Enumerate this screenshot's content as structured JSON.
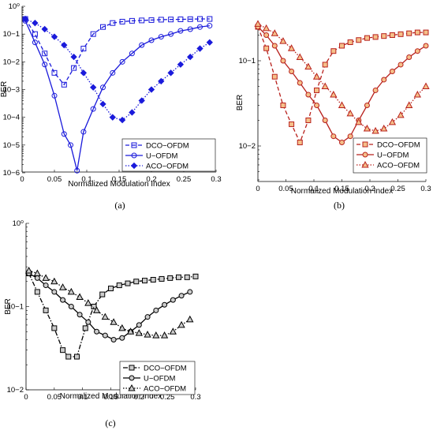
{
  "chart_data": [
    {
      "type": "line",
      "panel_label": "(a)",
      "xlabel": "Normalized Modulation Index",
      "ylabel": "BER",
      "y_scale": "log",
      "xlim": [
        0,
        0.3
      ],
      "ylim": [
        1e-06,
        1
      ],
      "x_ticks": [
        "0",
        "0.05",
        "0.1",
        "0.15",
        "0.2",
        "0.25",
        "0.3"
      ],
      "y_ticks": [
        "10−6",
        "10−5",
        "10−4",
        "10−3",
        "10−2",
        "10−1",
        "10⁰"
      ],
      "color": "#1a1adb",
      "legend_position": "bottom-right",
      "series": [
        {
          "name": "DCO−OFDM",
          "dash": "5,3",
          "marker": "square",
          "x": [
            0.005,
            0.02,
            0.035,
            0.05,
            0.065,
            0.08,
            0.095,
            0.11,
            0.125,
            0.14,
            0.155,
            0.17,
            0.185,
            0.2,
            0.215,
            0.23,
            0.245,
            0.26,
            0.275,
            0.29
          ],
          "y": [
            0.35,
            0.1,
            0.02,
            0.004,
            0.0015,
            0.006,
            0.03,
            0.1,
            0.18,
            0.25,
            0.28,
            0.3,
            0.31,
            0.32,
            0.33,
            0.335,
            0.34,
            0.345,
            0.35,
            0.35
          ]
        },
        {
          "name": "U−OFDM",
          "dash": "",
          "marker": "circle",
          "x": [
            0.005,
            0.02,
            0.035,
            0.05,
            0.065,
            0.075,
            0.085,
            0.095,
            0.11,
            0.125,
            0.14,
            0.155,
            0.17,
            0.185,
            0.2,
            0.215,
            0.23,
            0.245,
            0.26,
            0.275,
            0.29
          ],
          "y": [
            0.3,
            0.05,
            0.008,
            0.0006,
            2.5e-05,
            1e-05,
            1.2e-06,
            3e-05,
            0.0002,
            0.0012,
            0.004,
            0.01,
            0.02,
            0.04,
            0.06,
            0.08,
            0.1,
            0.13,
            0.15,
            0.18,
            0.2
          ]
        },
        {
          "name": "ACO−OFDM",
          "dash": "1.5,2",
          "marker": "diamond",
          "x": [
            0.005,
            0.02,
            0.035,
            0.05,
            0.065,
            0.08,
            0.095,
            0.11,
            0.125,
            0.14,
            0.155,
            0.17,
            0.185,
            0.2,
            0.215,
            0.23,
            0.245,
            0.26,
            0.275,
            0.29
          ],
          "y": [
            0.35,
            0.25,
            0.15,
            0.08,
            0.04,
            0.015,
            0.004,
            0.0012,
            0.0003,
            0.0001,
            8e-05,
            0.00015,
            0.0004,
            0.001,
            0.002,
            0.004,
            0.008,
            0.015,
            0.03,
            0.05
          ]
        }
      ]
    },
    {
      "type": "line",
      "panel_label": "(b)",
      "xlabel": "Normalized Modulation Index",
      "ylabel": "BER",
      "y_scale": "log",
      "xlim": [
        0,
        0.3
      ],
      "ylim": [
        0.007,
        0.35
      ],
      "x_ticks": [
        "0",
        "0.05",
        "0.1",
        "0.15",
        "0.2",
        "0.25",
        "0.3"
      ],
      "y_ticks": [
        "10−2",
        "10−1"
      ],
      "color": "#b8201c",
      "marker_fill": "#f5c08a",
      "legend_position": "bottom-right",
      "series": [
        {
          "name": "DCO−OFDM",
          "dash": "5,3",
          "marker": "square",
          "x": [
            0.0,
            0.015,
            0.03,
            0.045,
            0.06,
            0.075,
            0.09,
            0.105,
            0.12,
            0.135,
            0.15,
            0.165,
            0.18,
            0.195,
            0.21,
            0.225,
            0.24,
            0.255,
            0.27,
            0.285,
            0.3
          ],
          "y": [
            0.25,
            0.14,
            0.065,
            0.03,
            0.018,
            0.011,
            0.02,
            0.045,
            0.09,
            0.13,
            0.15,
            0.165,
            0.175,
            0.185,
            0.19,
            0.195,
            0.2,
            0.205,
            0.21,
            0.215,
            0.215
          ]
        },
        {
          "name": "U−OFDM",
          "dash": "",
          "marker": "circle",
          "x": [
            0.0,
            0.015,
            0.03,
            0.045,
            0.06,
            0.075,
            0.09,
            0.105,
            0.12,
            0.135,
            0.15,
            0.165,
            0.18,
            0.195,
            0.21,
            0.225,
            0.24,
            0.255,
            0.27,
            0.285,
            0.3
          ],
          "y": [
            0.25,
            0.2,
            0.15,
            0.1,
            0.075,
            0.055,
            0.04,
            0.03,
            0.02,
            0.013,
            0.011,
            0.013,
            0.02,
            0.03,
            0.045,
            0.06,
            0.075,
            0.09,
            0.11,
            0.13,
            0.15
          ]
        },
        {
          "name": "ACO−OFDM",
          "dash": "1.5,2",
          "marker": "triangle",
          "x": [
            0.0,
            0.015,
            0.03,
            0.045,
            0.06,
            0.075,
            0.09,
            0.105,
            0.12,
            0.135,
            0.15,
            0.165,
            0.18,
            0.195,
            0.21,
            0.225,
            0.24,
            0.255,
            0.27,
            0.285,
            0.3
          ],
          "y": [
            0.27,
            0.24,
            0.21,
            0.17,
            0.14,
            0.11,
            0.085,
            0.065,
            0.05,
            0.04,
            0.03,
            0.024,
            0.019,
            0.016,
            0.015,
            0.016,
            0.019,
            0.023,
            0.03,
            0.04,
            0.05
          ]
        }
      ]
    },
    {
      "type": "line",
      "panel_label": "(c)",
      "xlabel": "Normalized Modulation Index",
      "ylabel": "BER",
      "y_scale": "log",
      "xlim": [
        0,
        0.3
      ],
      "ylim": [
        0.01,
        1
      ],
      "x_ticks": [
        "0",
        "0.05",
        "0.1",
        "0.15",
        "0.2",
        "0.25",
        "0.3"
      ],
      "y_ticks": [
        "10−2",
        "10−1",
        "10⁰"
      ],
      "color": "#000000",
      "marker_fill": "#cccccc",
      "legend_position": "bottom-right",
      "series": [
        {
          "name": "DCO−OFDM",
          "dash": "6,2,1.5,2",
          "marker": "square",
          "x": [
            0.005,
            0.02,
            0.035,
            0.05,
            0.065,
            0.075,
            0.09,
            0.105,
            0.12,
            0.135,
            0.15,
            0.165,
            0.18,
            0.195,
            0.21,
            0.225,
            0.24,
            0.255,
            0.27,
            0.285,
            0.3
          ],
          "y": [
            0.25,
            0.15,
            0.09,
            0.055,
            0.03,
            0.025,
            0.025,
            0.055,
            0.1,
            0.14,
            0.165,
            0.18,
            0.19,
            0.2,
            0.205,
            0.21,
            0.215,
            0.22,
            0.225,
            0.225,
            0.23
          ]
        },
        {
          "name": "U−OFDM",
          "dash": "",
          "marker": "circle",
          "x": [
            0.005,
            0.02,
            0.035,
            0.05,
            0.065,
            0.08,
            0.095,
            0.11,
            0.125,
            0.14,
            0.155,
            0.17,
            0.185,
            0.2,
            0.215,
            0.23,
            0.245,
            0.26,
            0.275,
            0.29
          ],
          "y": [
            0.25,
            0.22,
            0.18,
            0.15,
            0.12,
            0.1,
            0.08,
            0.065,
            0.05,
            0.045,
            0.04,
            0.042,
            0.05,
            0.06,
            0.075,
            0.09,
            0.105,
            0.12,
            0.135,
            0.15
          ]
        },
        {
          "name": "ACO−OFDM",
          "dash": "1.5,2",
          "marker": "triangle",
          "x": [
            0.005,
            0.02,
            0.035,
            0.05,
            0.065,
            0.08,
            0.095,
            0.11,
            0.125,
            0.14,
            0.155,
            0.17,
            0.185,
            0.2,
            0.215,
            0.23,
            0.245,
            0.26,
            0.275,
            0.29
          ],
          "y": [
            0.27,
            0.25,
            0.22,
            0.2,
            0.17,
            0.15,
            0.13,
            0.11,
            0.09,
            0.075,
            0.065,
            0.055,
            0.05,
            0.048,
            0.046,
            0.045,
            0.045,
            0.05,
            0.06,
            0.07
          ]
        }
      ]
    }
  ]
}
